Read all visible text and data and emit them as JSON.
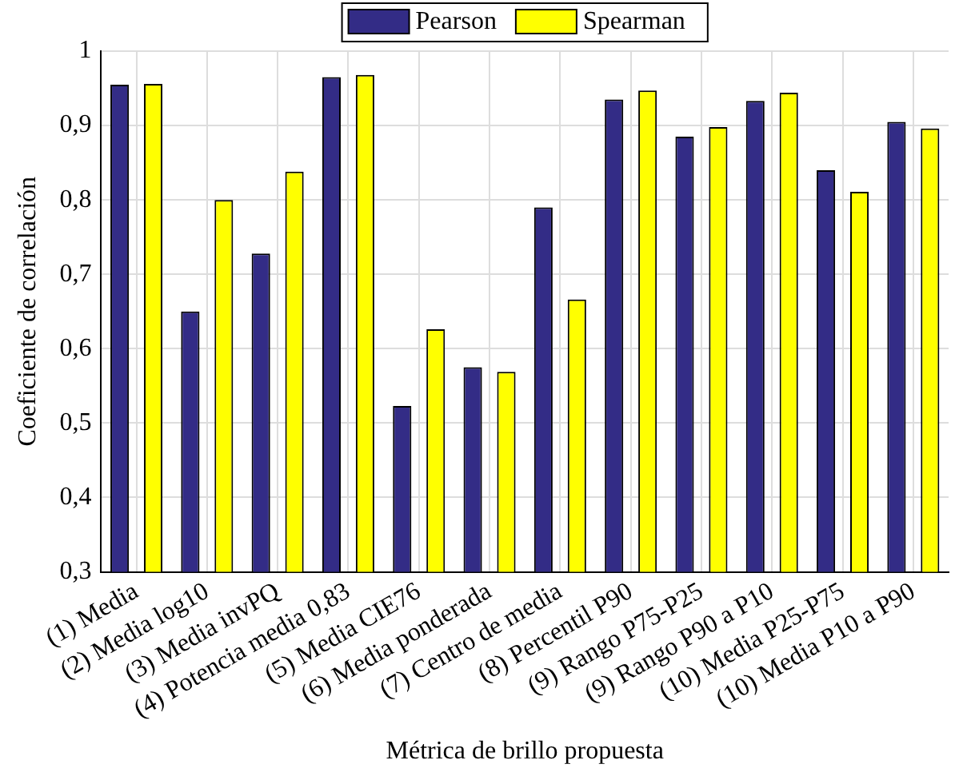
{
  "chart_data": {
    "type": "bar",
    "xlabel": "Métrica de brillo propuesta",
    "ylabel": "Coeficiente de correlación",
    "categories": [
      "(1) Media",
      "(2) Media log10",
      "(3) Media invPQ",
      "(4) Potencia media 0,83",
      "(5) Media CIE76",
      "(6) Media ponderada",
      "(7) Centro de media",
      "(8) Percentil P90",
      "(9) Rango P75-P25",
      "(9) Rango P90 a P10",
      "(10) Media P25-P75",
      "(10) Media P10 a P90"
    ],
    "series": [
      {
        "name": "Pearson",
        "color": "#332c86",
        "values": [
          0.955,
          0.65,
          0.728,
          0.965,
          0.523,
          0.575,
          0.79,
          0.935,
          0.885,
          0.933,
          0.84,
          0.905
        ]
      },
      {
        "name": "Spearman",
        "color": "#ffff00",
        "values": [
          0.956,
          0.8,
          0.838,
          0.968,
          0.626,
          0.569,
          0.666,
          0.947,
          0.898,
          0.944,
          0.811,
          0.896
        ]
      }
    ],
    "ylim": [
      0.3,
      1
    ],
    "yticks": [
      {
        "value": 0.3,
        "label": "0,3"
      },
      {
        "value": 0.4,
        "label": "0,4"
      },
      {
        "value": 0.5,
        "label": "0,5"
      },
      {
        "value": 0.6,
        "label": "0,6"
      },
      {
        "value": 0.7,
        "label": "0,7"
      },
      {
        "value": 0.8,
        "label": "0,8"
      },
      {
        "value": 0.9,
        "label": "0,9"
      },
      {
        "value": 1,
        "label": "1"
      }
    ],
    "grid": true,
    "legend": "top"
  }
}
